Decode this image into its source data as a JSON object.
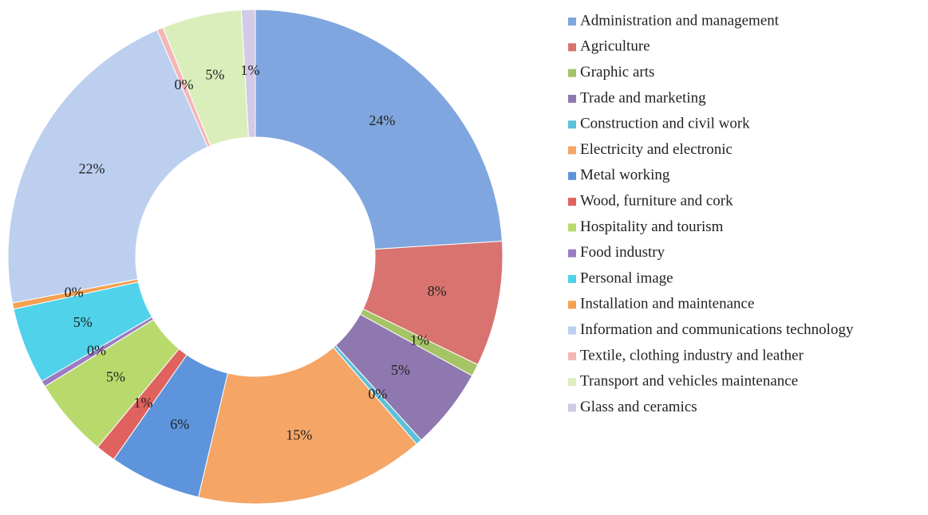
{
  "chart_data": {
    "type": "donut",
    "categories": [
      "Administration and management",
      "Agriculture",
      "Graphic arts",
      "Trade and marketing",
      "Construction and civil work",
      "Electricity and electronic",
      "Metal working",
      "Wood, furniture and cork",
      "Hospitality and tourism",
      "Food industry",
      "Personal image",
      "Installation and maintenance",
      "Information and communications technology",
      "Textile, clothing industry and leather",
      "Transport and vehicles maintenance",
      "Glass and ceramics"
    ],
    "values": [
      24.0,
      8.2,
      0.8,
      5.3,
      0.4,
      15.0,
      6.0,
      1.3,
      5.2,
      0.4,
      5.0,
      0.4,
      21.5,
      0.4,
      5.2,
      0.9
    ],
    "value_labels": [
      "24%",
      "8%",
      "1%",
      "5%",
      "0%",
      "15%",
      "6%",
      "1%",
      "5%",
      "0%",
      "5%",
      "0%",
      "22%",
      "0%",
      "5%",
      "1%"
    ],
    "colors": [
      "#7fa6de",
      "#d9736f",
      "#a4c465",
      "#8f78b0",
      "#5cc0d8",
      "#f5a566",
      "#5d94dc",
      "#e0625e",
      "#b8da6c",
      "#9b7cc4",
      "#4fd2ea",
      "#f5a050",
      "#bccfef",
      "#f5b5b5",
      "#daeebb",
      "#d2cae6"
    ],
    "legend": "right"
  }
}
